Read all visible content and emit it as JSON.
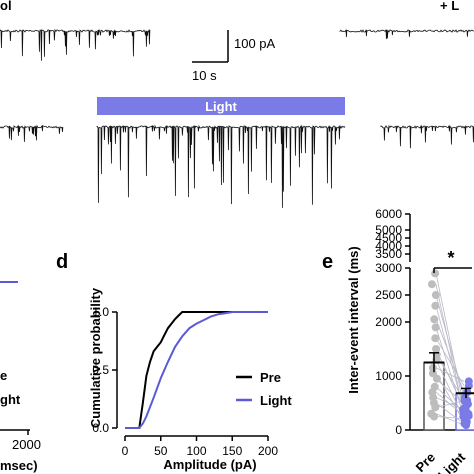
{
  "top": {
    "cropped_left_label": "ol",
    "cropped_right_label": "+ L",
    "scale_bar": {
      "amplitude_label": "100 pA",
      "time_label": "10 s"
    },
    "light_bar_label": "Light",
    "light_color": "#7b7be8"
  },
  "panel_c_fragment": {
    "legend_pre_fragment": "e",
    "legend_light_fragment": "ght",
    "tick_fragment": "2000",
    "axis_fragment": "msec)"
  },
  "panel_d": {
    "letter": "d",
    "chart_data": {
      "type": "line",
      "xlabel": "Amplitude (pA)",
      "ylabel": "Cumulative probability",
      "x_ticks": [
        "0",
        "50",
        "100",
        "150",
        "200"
      ],
      "y_ticks": [
        "0.0",
        "0.5",
        "1.0"
      ],
      "xlim": [
        0,
        200
      ],
      "ylim": [
        0,
        1
      ],
      "legend_position": "lower-right",
      "series": [
        {
          "name": "Pre",
          "color": "#000000",
          "x": [
            0,
            20,
            25,
            30,
            35,
            40,
            45,
            50,
            55,
            60,
            65,
            70,
            75,
            80,
            90,
            100,
            200
          ],
          "y": [
            0,
            0,
            0.22,
            0.45,
            0.57,
            0.66,
            0.7,
            0.74,
            0.8,
            0.86,
            0.9,
            0.94,
            0.97,
            1.0,
            1.0,
            1.0,
            1.0
          ]
        },
        {
          "name": "Light",
          "color": "#5a5ad6",
          "x": [
            0,
            20,
            25,
            30,
            40,
            50,
            60,
            70,
            80,
            90,
            100,
            110,
            120,
            130,
            140,
            150,
            200
          ],
          "y": [
            0,
            0,
            0.04,
            0.1,
            0.26,
            0.43,
            0.57,
            0.7,
            0.79,
            0.86,
            0.9,
            0.93,
            0.96,
            0.98,
            0.99,
            1.0,
            1.0
          ]
        }
      ]
    }
  },
  "panel_e": {
    "letter": "e",
    "significance": "*",
    "chart_data": {
      "type": "bar",
      "ylabel": "Inter-event interval (ms)",
      "categories": [
        "Pre",
        "Light"
      ],
      "values": [
        1250,
        680
      ],
      "errors": [
        180,
        90
      ],
      "y_ticks": [
        "0",
        "1000",
        "2000",
        "2500",
        "3000",
        "3500",
        "4000",
        "4500",
        "5000",
        "6000"
      ],
      "ylim": [
        0,
        6000
      ],
      "axis_break": true,
      "colors": [
        "#555555",
        "#6a6ae0"
      ],
      "paired_points": [
        [
          2900,
          420
        ],
        [
          2700,
          300
        ],
        [
          2500,
          600
        ],
        [
          2300,
          350
        ],
        [
          2050,
          700
        ],
        [
          1900,
          250
        ],
        [
          1700,
          820
        ],
        [
          1500,
          400
        ],
        [
          1400,
          550
        ],
        [
          1300,
          200
        ],
        [
          1150,
          900
        ],
        [
          1050,
          150
        ],
        [
          950,
          480
        ],
        [
          800,
          320
        ],
        [
          700,
          260
        ],
        [
          600,
          380
        ],
        [
          500,
          120
        ],
        [
          420,
          540
        ],
        [
          300,
          90
        ],
        [
          250,
          210
        ]
      ]
    }
  }
}
